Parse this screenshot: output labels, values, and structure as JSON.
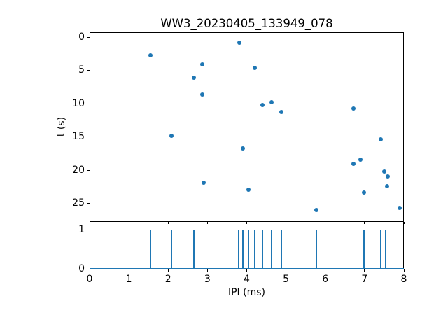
{
  "figure": {
    "background": "#ffffff",
    "accent_color": "#1f77b4",
    "text_color": "#000000"
  },
  "chart_data": [
    {
      "type": "scatter",
      "title": "WW3_20230405_133949_078",
      "xlabel": "",
      "ylabel": "t (s)",
      "xlim": [
        0,
        8
      ],
      "ylim": [
        -0.74,
        27.63
      ],
      "y_inverted": true,
      "yticks": [
        0,
        5,
        10,
        15,
        20,
        25
      ],
      "grid": false,
      "marker_color": "#1f77b4",
      "points": [
        [
          1.55,
          2.7
        ],
        [
          2.09,
          14.8
        ],
        [
          2.65,
          6.1
        ],
        [
          2.86,
          4.1
        ],
        [
          2.86,
          8.6
        ],
        [
          2.91,
          21.9
        ],
        [
          3.82,
          0.85
        ],
        [
          3.9,
          16.7
        ],
        [
          4.04,
          22.9
        ],
        [
          4.21,
          4.6
        ],
        [
          4.4,
          10.2
        ],
        [
          4.63,
          9.8
        ],
        [
          4.88,
          11.2
        ],
        [
          5.78,
          26.0
        ],
        [
          6.71,
          10.7
        ],
        [
          6.71,
          19.0
        ],
        [
          6.89,
          18.4
        ],
        [
          6.98,
          23.3
        ],
        [
          7.41,
          15.3
        ],
        [
          7.5,
          20.2
        ],
        [
          7.57,
          22.4
        ],
        [
          7.59,
          20.9
        ],
        [
          7.9,
          25.6
        ]
      ]
    },
    {
      "type": "event-lines",
      "xlabel": "IPI (ms)",
      "ylabel": "",
      "xlim": [
        0,
        8
      ],
      "ylim": [
        0,
        1.21
      ],
      "xticks": [
        0,
        1,
        2,
        3,
        4,
        5,
        6,
        7,
        8
      ],
      "yticks": [
        0,
        1
      ],
      "grid": false,
      "line_color": "#1f77b4",
      "baseline_y": 0,
      "spike_height": 1,
      "events": [
        1.55,
        2.09,
        2.65,
        2.86,
        2.91,
        3.8,
        3.9,
        4.04,
        4.21,
        4.4,
        4.63,
        4.88,
        5.78,
        6.71,
        6.89,
        6.98,
        7.41,
        7.54,
        7.9
      ]
    }
  ]
}
